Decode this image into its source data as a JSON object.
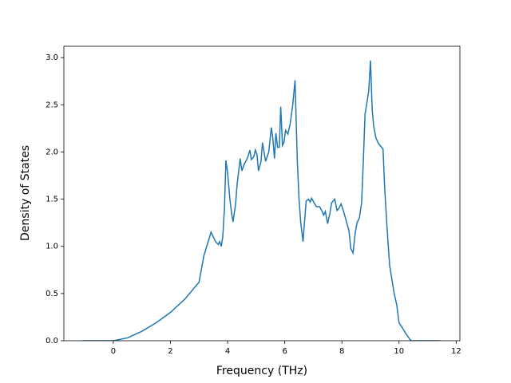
{
  "chart_data": {
    "type": "line",
    "xlabel": "Frequency (THz)",
    "ylabel": "Density of States",
    "xlim": [
      -1.73,
      12.13
    ],
    "ylim": [
      0,
      3.12
    ],
    "xticks": [
      0,
      2,
      4,
      6,
      8,
      10,
      12
    ],
    "yticks": [
      {
        "value": 0,
        "label": "0.0"
      },
      0.5,
      {
        "value": 1,
        "label": "1.0"
      },
      1.5,
      {
        "value": 2,
        "label": "2.0"
      },
      2.5,
      {
        "value": 3,
        "label": "3.0"
      }
    ],
    "series": [
      {
        "color": "#1f77b4",
        "x": [
          -1.08,
          0,
          0.5,
          1,
          1.5,
          2,
          2.5,
          3,
          3.17,
          3.42,
          3.58,
          3.67,
          3.72,
          3.78,
          3.83,
          3.89,
          3.94,
          4.0,
          4.08,
          4.14,
          4.19,
          4.28,
          4.33,
          4.44,
          4.5,
          4.58,
          4.69,
          4.78,
          4.83,
          4.92,
          4.97,
          5.03,
          5.08,
          5.17,
          5.22,
          5.33,
          5.44,
          5.53,
          5.58,
          5.64,
          5.69,
          5.75,
          5.81,
          5.86,
          5.92,
          5.97,
          6.03,
          6.11,
          6.19,
          6.28,
          6.36,
          6.44,
          6.5,
          6.56,
          6.64,
          6.69,
          6.75,
          6.83,
          6.89,
          6.94,
          7.03,
          7.11,
          7.22,
          7.31,
          7.36,
          7.42,
          7.5,
          7.58,
          7.64,
          7.75,
          7.83,
          7.89,
          7.97,
          8.06,
          8.17,
          8.25,
          8.31,
          8.39,
          8.47,
          8.53,
          8.61,
          8.69,
          8.75,
          8.81,
          8.89,
          8.94,
          9.0,
          9.06,
          9.11,
          9.19,
          9.28,
          9.36,
          9.44,
          9.5,
          9.58,
          9.67,
          9.75,
          9.83,
          9.92,
          10.0,
          10.11,
          10.25,
          10.39,
          10.44,
          11.44
        ],
        "values": [
          0,
          0,
          0.03,
          0.1,
          0.19,
          0.3,
          0.44,
          0.62,
          0.9,
          1.15,
          1.05,
          1.02,
          1.05,
          1.0,
          1.1,
          1.4,
          1.91,
          1.78,
          1.5,
          1.35,
          1.26,
          1.45,
          1.65,
          1.93,
          1.8,
          1.87,
          1.93,
          2.02,
          1.92,
          1.95,
          2.02,
          1.97,
          1.8,
          1.9,
          2.1,
          1.9,
          2.0,
          2.26,
          2.15,
          1.93,
          2.2,
          2.05,
          2.05,
          2.48,
          2.07,
          2.1,
          2.23,
          2.19,
          2.3,
          2.5,
          2.76,
          1.9,
          1.5,
          1.25,
          1.05,
          1.25,
          1.48,
          1.5,
          1.47,
          1.51,
          1.46,
          1.42,
          1.42,
          1.37,
          1.33,
          1.37,
          1.24,
          1.35,
          1.46,
          1.5,
          1.38,
          1.4,
          1.45,
          1.37,
          1.25,
          1.16,
          0.98,
          0.93,
          1.15,
          1.25,
          1.3,
          1.46,
          1.9,
          2.4,
          2.55,
          2.65,
          2.97,
          2.45,
          2.28,
          2.15,
          2.09,
          2.06,
          2.03,
          1.6,
          1.2,
          0.8,
          0.65,
          0.5,
          0.38,
          0.19,
          0.14,
          0.07,
          0.01,
          0,
          0
        ]
      }
    ]
  }
}
